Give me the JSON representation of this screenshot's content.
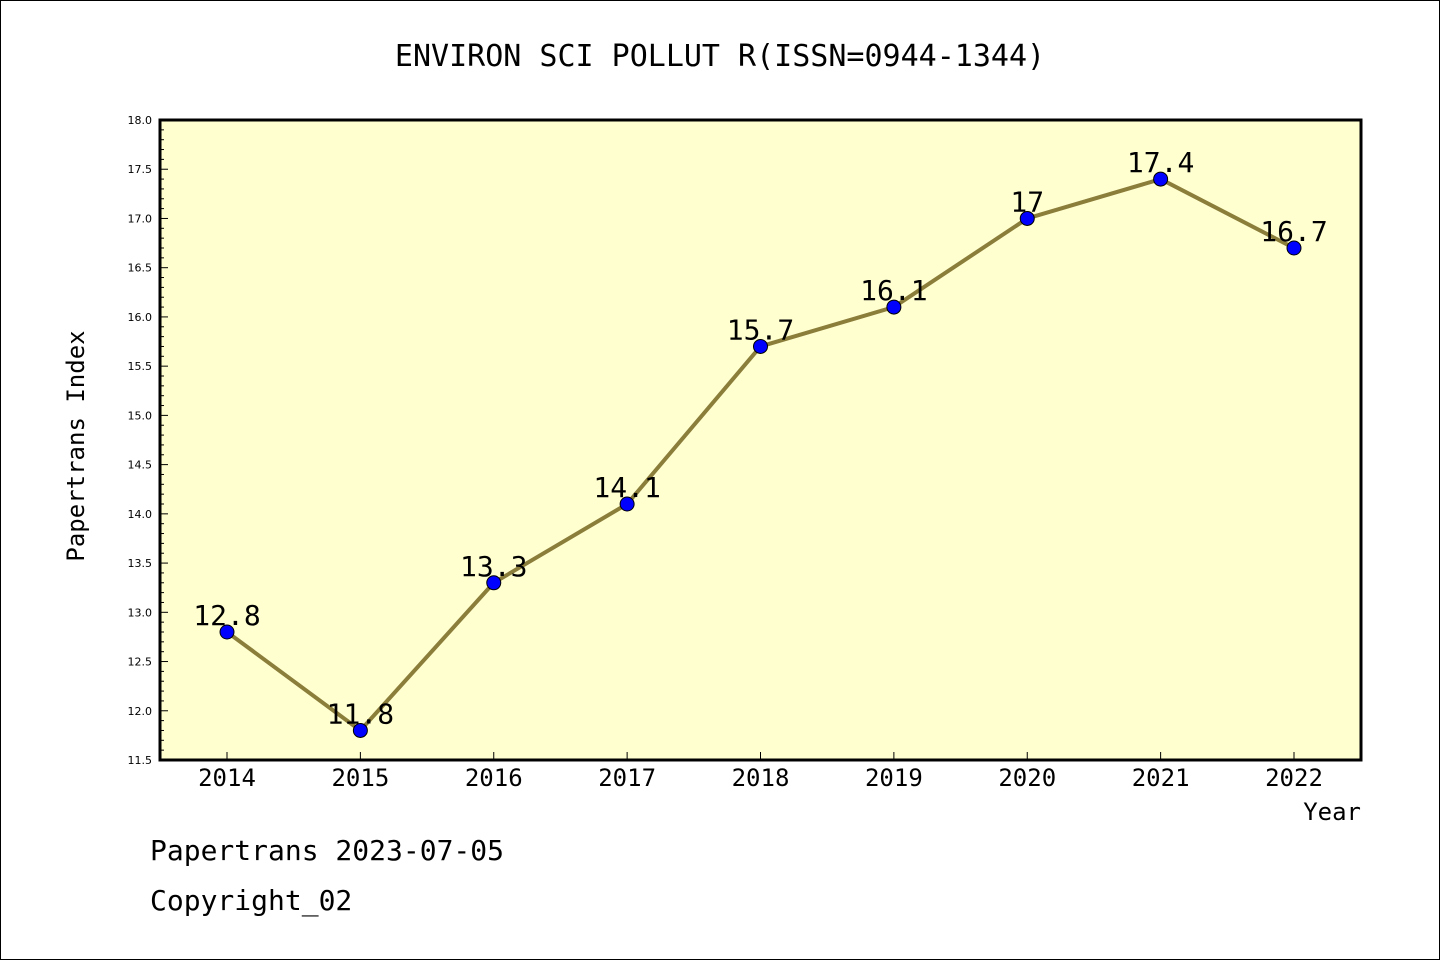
{
  "chart_data": {
    "type": "line",
    "title": "ENVIRON SCI POLLUT R(ISSN=0944-1344)",
    "xlabel": "Year",
    "ylabel": "Papertrans Index",
    "categories": [
      "2014",
      "2015",
      "2016",
      "2017",
      "2018",
      "2019",
      "2020",
      "2021",
      "2022"
    ],
    "series": [
      {
        "values": [
          12.8,
          11.8,
          13.3,
          14.1,
          15.7,
          16.1,
          17,
          17.4,
          16.7
        ],
        "labels": [
          "12.8",
          "11.8",
          "13.3",
          "14.1",
          "15.7",
          "16.1",
          "17",
          "17.4",
          "16.7"
        ]
      }
    ],
    "ylim": [
      11.5,
      18.0
    ],
    "y_ticks": [
      "11.5",
      "12.0",
      "12.5",
      "13.0",
      "13.5",
      "14.0",
      "14.5",
      "15.0",
      "15.5",
      "16.0",
      "16.5",
      "17.0",
      "17.5",
      "18.0"
    ],
    "grid": false,
    "legend": "none",
    "colors": {
      "plot_background": "#ffffd0",
      "line": "#8b7d3a",
      "marker": "#0000ff"
    }
  },
  "footer": {
    "line1": "Papertrans 2023-07-05",
    "line2": "Copyright_02"
  }
}
